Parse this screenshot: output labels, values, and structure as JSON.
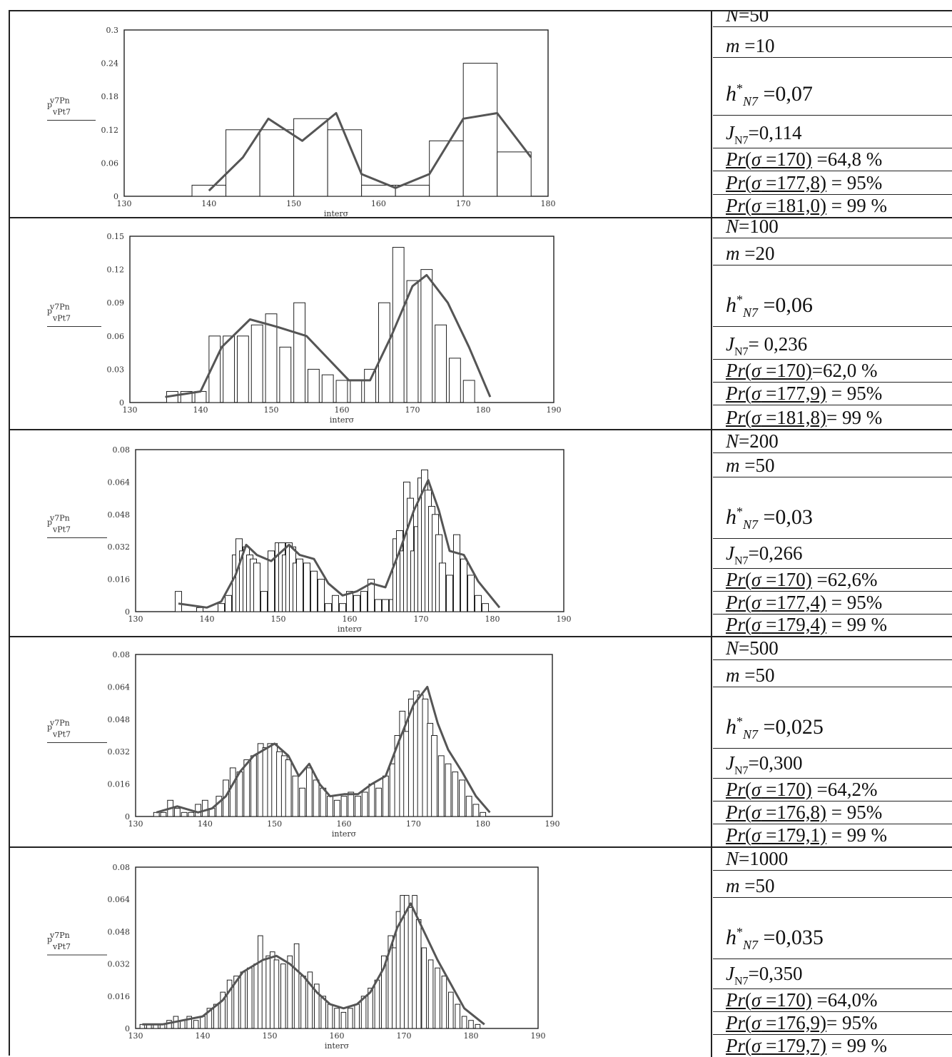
{
  "rows": [
    {
      "N": "N=50",
      "m": "m =10",
      "h": "h*N7 =0,07",
      "J": "JN7 =0,114",
      "p1": "Pr(σ =170) =64,8 %",
      "p2": "Pr(σ =177,8) = 95%",
      "p3": "Pr(σ =181,0) = 99 %"
    },
    {
      "N": "N=100",
      "m": "m =20",
      "h": "h*N7 =0,06",
      "J": "JN7 = 0,236",
      "p1": "Pr(σ =170)=62,0 %",
      "p2": "Pr(σ =177,9) = 95%",
      "p3": "Pr(σ =181,8)= 99 %"
    },
    {
      "N": "N=200",
      "m": "m =50",
      "h": "h*N7 =0,03",
      "J": "JN7 =0,266",
      "p1": "Pr(σ =170) =62,6%",
      "p2": "Pr(σ =177,4) = 95%",
      "p3": "Pr(σ =179,4) = 99 %"
    },
    {
      "N": "N=500",
      "m": "m =50",
      "h": "h*N7 =0,025",
      "J": "JN7 =0,300",
      "p1": "Pr(σ =170) =64,2%",
      "p2": "Pr(σ =176,8) = 95%",
      "p3": "Pr(σ =179,1) = 99 %"
    },
    {
      "N": "N=1000",
      "m": "m =50",
      "h": "h*N7 =0,035",
      "J": "JN7 =0,350",
      "p1": "Pr(σ =170) =64,0%",
      "p2": "Pr(σ =176,9)= 95%",
      "p3": "Pr(σ =179,7) = 99 %"
    }
  ],
  "chart_data": [
    {
      "type": "bar",
      "xlabel": "interσ",
      "ylabel": [
        "v7Pn",
        "p",
        "vPt7"
      ],
      "xlim": [
        130,
        180
      ],
      "ylim": [
        0,
        0.3
      ],
      "xticks": [
        130,
        140,
        150,
        160,
        170,
        180
      ],
      "yticks": [
        0,
        0.06,
        0.12,
        0.18,
        0.24,
        0.3
      ],
      "bar_width": 4.0,
      "bars": {
        "x": [
          140,
          144,
          148,
          152,
          156,
          160,
          164,
          168,
          172,
          176
        ],
        "y": [
          0.02,
          0.12,
          0.12,
          0.14,
          0.12,
          0.02,
          0.02,
          0.1,
          0.24,
          0.08
        ]
      },
      "line": {
        "x": [
          140,
          144,
          147,
          151,
          155,
          158,
          162,
          166,
          170,
          174,
          178
        ],
        "y": [
          0.01,
          0.07,
          0.14,
          0.1,
          0.15,
          0.04,
          0.015,
          0.04,
          0.14,
          0.15,
          0.07
        ]
      }
    },
    {
      "type": "bar",
      "xlabel": "interσ",
      "ylabel": [
        "v7Pn",
        "p",
        "vPt7"
      ],
      "xlim": [
        130,
        190
      ],
      "ylim": [
        0,
        0.15
      ],
      "xticks": [
        130,
        140,
        150,
        160,
        170,
        180,
        190
      ],
      "yticks": [
        0,
        0.03,
        0.06,
        0.09,
        0.12,
        0.15
      ],
      "bar_width": 1.6,
      "bars": {
        "x": [
          136,
          138,
          140,
          142,
          144,
          146,
          148,
          150,
          152,
          154,
          156,
          158,
          160,
          162,
          164,
          166,
          168,
          170,
          172,
          174,
          176,
          178
        ],
        "y": [
          0.01,
          0.01,
          0.01,
          0.06,
          0.06,
          0.06,
          0.07,
          0.08,
          0.05,
          0.09,
          0.03,
          0.025,
          0.02,
          0.02,
          0.03,
          0.09,
          0.14,
          0.11,
          0.12,
          0.07,
          0.04,
          0.02
        ]
      },
      "line": {
        "x": [
          135,
          140,
          143,
          147,
          151,
          155,
          158,
          161,
          164,
          167,
          170,
          172,
          175,
          178,
          181
        ],
        "y": [
          0.005,
          0.01,
          0.05,
          0.075,
          0.068,
          0.06,
          0.04,
          0.02,
          0.02,
          0.06,
          0.105,
          0.115,
          0.09,
          0.05,
          0.005
        ]
      }
    },
    {
      "type": "bar",
      "xlabel": "interσ",
      "ylabel": [
        "v7Pn",
        "p",
        "vPt7"
      ],
      "xlim": [
        130,
        190
      ],
      "ylim": [
        0,
        0.08
      ],
      "xticks": [
        130,
        140,
        150,
        160,
        170,
        180,
        190
      ],
      "yticks": [
        0,
        0.016,
        0.032,
        0.048,
        0.064,
        0.08
      ],
      "bar_width": 0.9,
      "bars": {
        "x": [
          136,
          139,
          142,
          143,
          144,
          144.5,
          145,
          145.5,
          146,
          146.5,
          147,
          148,
          149,
          150,
          150.5,
          151,
          151.5,
          152,
          152.5,
          153,
          154,
          155,
          156,
          157,
          158,
          159,
          160,
          161,
          162,
          163,
          164,
          165,
          166,
          166.5,
          167,
          167.5,
          168,
          168.5,
          169,
          169.5,
          170,
          170.5,
          171,
          171.5,
          172,
          172.5,
          173,
          174,
          175,
          176,
          177,
          178,
          179
        ],
        "y": [
          0.01,
          0.002,
          0.004,
          0.008,
          0.028,
          0.036,
          0.03,
          0.032,
          0.028,
          0.026,
          0.024,
          0.01,
          0.03,
          0.034,
          0.034,
          0.028,
          0.034,
          0.032,
          0.024,
          0.026,
          0.024,
          0.02,
          0.016,
          0.004,
          0.008,
          0.004,
          0.01,
          0.008,
          0.01,
          0.016,
          0.006,
          0.006,
          0.006,
          0.036,
          0.04,
          0.03,
          0.064,
          0.056,
          0.03,
          0.042,
          0.066,
          0.07,
          0.06,
          0.052,
          0.048,
          0.038,
          0.024,
          0.018,
          0.038,
          0.026,
          0.018,
          0.008,
          0.004
        ]
      },
      "line": {
        "x": [
          136,
          140,
          142,
          144,
          145.5,
          147,
          149,
          151.5,
          153,
          155,
          157,
          159,
          161,
          163,
          165,
          167,
          169,
          171,
          172.5,
          174,
          176,
          178,
          181
        ],
        "y": [
          0.004,
          0.002,
          0.005,
          0.018,
          0.033,
          0.028,
          0.025,
          0.033,
          0.028,
          0.026,
          0.014,
          0.008,
          0.01,
          0.014,
          0.012,
          0.03,
          0.05,
          0.065,
          0.05,
          0.03,
          0.028,
          0.015,
          0.002
        ]
      }
    },
    {
      "type": "bar",
      "xlabel": "interσ",
      "ylabel": [
        "v7Pn",
        "p",
        "vPt7"
      ],
      "xlim": [
        130,
        190
      ],
      "ylim": [
        0,
        0.08
      ],
      "xticks": [
        130,
        140,
        150,
        160,
        170,
        180,
        190
      ],
      "yticks": [
        0,
        0.016,
        0.032,
        0.048,
        0.064,
        0.08
      ],
      "bar_width": 0.8,
      "bars": {
        "x": [
          133,
          134,
          135,
          136,
          137,
          138,
          139,
          140,
          141,
          142,
          143,
          144,
          145,
          146,
          147,
          148,
          148.7,
          149.4,
          150,
          150.7,
          151.4,
          152,
          153,
          154,
          155,
          156,
          157,
          158,
          159,
          160,
          161,
          162,
          163,
          164,
          165,
          166,
          167,
          167.7,
          168.4,
          169,
          169.7,
          170.4,
          171,
          171.7,
          172.4,
          173,
          174,
          175,
          176,
          177,
          178,
          179,
          180
        ],
        "y": [
          0.002,
          0.002,
          0.008,
          0.004,
          0.002,
          0.002,
          0.006,
          0.008,
          0.004,
          0.01,
          0.018,
          0.024,
          0.022,
          0.028,
          0.03,
          0.036,
          0.034,
          0.036,
          0.036,
          0.032,
          0.03,
          0.028,
          0.02,
          0.014,
          0.024,
          0.018,
          0.014,
          0.01,
          0.008,
          0.01,
          0.012,
          0.01,
          0.012,
          0.016,
          0.014,
          0.02,
          0.026,
          0.04,
          0.052,
          0.042,
          0.058,
          0.062,
          0.06,
          0.058,
          0.046,
          0.04,
          0.03,
          0.026,
          0.022,
          0.018,
          0.01,
          0.006,
          0.002
        ]
      },
      "line": {
        "x": [
          133,
          136,
          139,
          141,
          143,
          145,
          147,
          150,
          152,
          153.5,
          155,
          156.5,
          158,
          160,
          162,
          164,
          166,
          168,
          170,
          172,
          173.5,
          175,
          177,
          179,
          181
        ],
        "y": [
          0.002,
          0.005,
          0.002,
          0.004,
          0.01,
          0.022,
          0.03,
          0.036,
          0.03,
          0.02,
          0.026,
          0.016,
          0.01,
          0.011,
          0.011,
          0.016,
          0.02,
          0.038,
          0.055,
          0.064,
          0.046,
          0.033,
          0.022,
          0.01,
          0.002
        ]
      }
    },
    {
      "type": "bar",
      "xlabel": "interσ",
      "ylabel": [
        "v7Pn",
        "p",
        "vPt7"
      ],
      "xlim": [
        130,
        190
      ],
      "ylim": [
        0,
        0.08
      ],
      "xticks": [
        130,
        140,
        150,
        160,
        170,
        180,
        190
      ],
      "yticks": [
        0,
        0.016,
        0.032,
        0.048,
        0.064,
        0.08
      ],
      "bar_width": 0.7,
      "bars": {
        "x": [
          131,
          132,
          133,
          134,
          135,
          136,
          137,
          138,
          139,
          140,
          141,
          142,
          143,
          144,
          145,
          146,
          147,
          148,
          148.6,
          149.2,
          149.8,
          150.4,
          151,
          152,
          153,
          154,
          155,
          156,
          157,
          158,
          159,
          160,
          161,
          162,
          163,
          164,
          165,
          166,
          167,
          168,
          168.6,
          169.2,
          169.8,
          170.4,
          171,
          171.6,
          172.2,
          173,
          174,
          175,
          176,
          177,
          178,
          179,
          180,
          181
        ],
        "y": [
          0.002,
          0.002,
          0.002,
          0.002,
          0.004,
          0.006,
          0.004,
          0.006,
          0.004,
          0.006,
          0.01,
          0.012,
          0.018,
          0.024,
          0.026,
          0.028,
          0.03,
          0.032,
          0.046,
          0.034,
          0.036,
          0.038,
          0.034,
          0.032,
          0.036,
          0.042,
          0.026,
          0.028,
          0.022,
          0.016,
          0.012,
          0.01,
          0.008,
          0.01,
          0.012,
          0.016,
          0.02,
          0.024,
          0.036,
          0.046,
          0.04,
          0.058,
          0.066,
          0.066,
          0.06,
          0.066,
          0.054,
          0.04,
          0.034,
          0.03,
          0.026,
          0.018,
          0.012,
          0.006,
          0.004,
          0.002
        ]
      },
      "line": {
        "x": [
          131,
          134,
          137,
          140,
          143,
          146,
          149,
          151,
          153,
          155,
          157,
          159,
          161,
          163,
          165,
          167,
          169,
          171,
          173,
          175,
          177,
          179,
          182
        ],
        "y": [
          0.002,
          0.002,
          0.004,
          0.006,
          0.014,
          0.028,
          0.034,
          0.036,
          0.032,
          0.026,
          0.018,
          0.012,
          0.01,
          0.012,
          0.018,
          0.03,
          0.05,
          0.062,
          0.048,
          0.034,
          0.022,
          0.01,
          0.002
        ]
      }
    }
  ]
}
